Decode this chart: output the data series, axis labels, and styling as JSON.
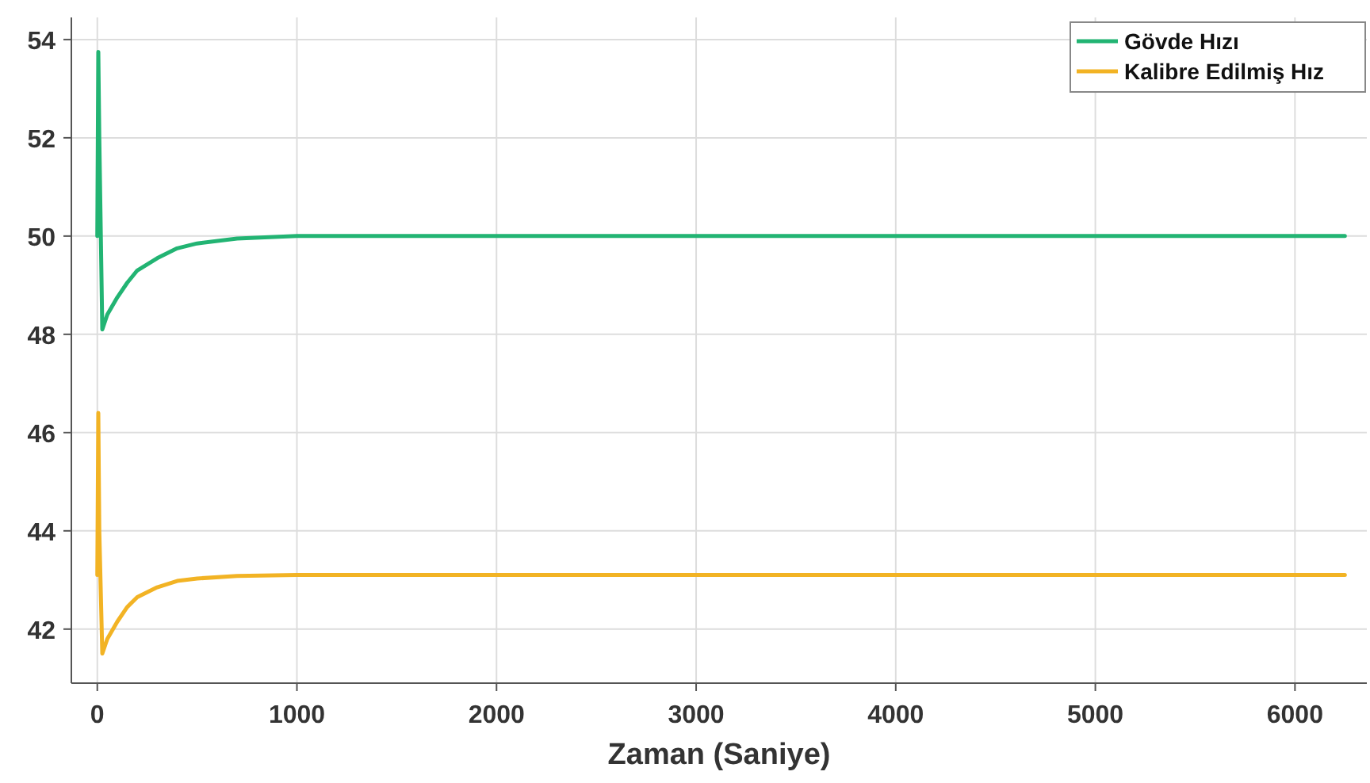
{
  "chart_data": {
    "type": "line",
    "xlabel": "Zaman (Saniye)",
    "xlim": [
      -130,
      6360
    ],
    "ylim": [
      40.9,
      54.45
    ],
    "xticks": [
      0,
      1000,
      2000,
      3000,
      4000,
      5000,
      6000
    ],
    "yticks": [
      42,
      44,
      46,
      48,
      50,
      52,
      54
    ],
    "grid": true,
    "legend": "top right",
    "line_style": "solid",
    "marker": "none",
    "series": [
      {
        "name": "Gövde Hızı",
        "color": "#22b473",
        "x": [
          0,
          5,
          10,
          25,
          50,
          100,
          150,
          200,
          300,
          400,
          500,
          700,
          1000,
          2000,
          6250
        ],
        "values": [
          50,
          53.75,
          52,
          48.1,
          48.4,
          48.75,
          49.05,
          49.3,
          49.55,
          49.75,
          49.85,
          49.95,
          50,
          50,
          50
        ]
      },
      {
        "name": "Kalibre Edilmiş Hız",
        "color": "#f2b324",
        "x": [
          0,
          5,
          10,
          25,
          50,
          100,
          150,
          200,
          300,
          400,
          500,
          700,
          1000,
          2000,
          6250
        ],
        "values": [
          43.1,
          46.4,
          44,
          41.5,
          41.8,
          42.15,
          42.45,
          42.65,
          42.85,
          42.98,
          43.03,
          43.08,
          43.1,
          43.1,
          43.1
        ]
      }
    ]
  }
}
